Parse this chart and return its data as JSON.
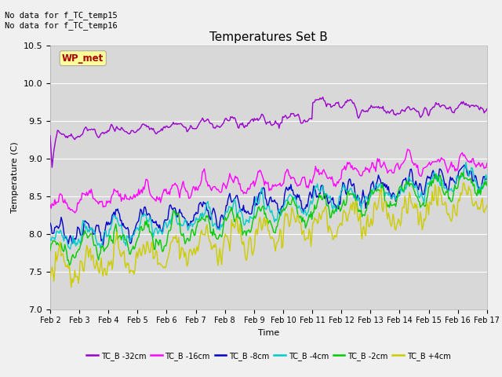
{
  "title": "Temperatures Set B",
  "xlabel": "Time",
  "ylabel": "Temperature (C)",
  "ylim": [
    7.0,
    10.5
  ],
  "annotation_text": "No data for f_TC_temp15\nNo data for f_TC_temp16",
  "wp_met_label": "WP_met",
  "wp_met_color": "#aa0000",
  "wp_met_bg": "#ffff99",
  "fig_bg": "#f0f0f0",
  "plot_bg": "#d8d8d8",
  "grid_color": "#ffffff",
  "series": [
    {
      "label": "TC_B -32cm",
      "color": "#9900cc",
      "lw": 1.0
    },
    {
      "label": "TC_B -16cm",
      "color": "#ff00ff",
      "lw": 1.0
    },
    {
      "label": "TC_B -8cm",
      "color": "#0000cc",
      "lw": 1.0
    },
    {
      "label": "TC_B -4cm",
      "color": "#00cccc",
      "lw": 1.0
    },
    {
      "label": "TC_B -2cm",
      "color": "#00cc00",
      "lw": 1.0
    },
    {
      "label": "TC_B +4cm",
      "color": "#cccc00",
      "lw": 1.0
    }
  ],
  "x_tick_labels": [
    "Feb 2",
    "Feb 3",
    "Feb 4",
    "Feb 5",
    "Feb 6",
    "Feb 7",
    "Feb 8",
    "Feb 9",
    "Feb 10",
    "Feb 11",
    "Feb 12",
    "Feb 13",
    "Feb 14",
    "Feb 15",
    "Feb 16",
    "Feb 17"
  ],
  "n_points": 480
}
